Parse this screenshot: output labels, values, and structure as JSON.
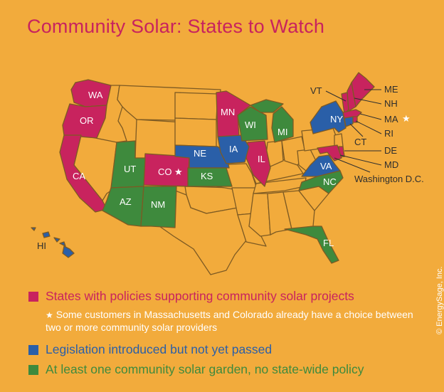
{
  "title": "Community Solar: States to Watch",
  "colors": {
    "background": "#f2ab3c",
    "policy": "#c8235e",
    "legislation": "#2a5fa8",
    "garden": "#3e8a3d",
    "other_state": "#f2ab3c",
    "border": "#7d5a23"
  },
  "state_labels": {
    "WA": "WA",
    "OR": "OR",
    "CA": "CA",
    "UT": "UT",
    "AZ": "AZ",
    "NM": "NM",
    "CO": "CO",
    "NE": "NE",
    "KS": "KS",
    "MN": "MN",
    "IA": "IA",
    "WI": "WI",
    "IL": "IL",
    "MI": "MI",
    "NY": "NY",
    "VA": "VA",
    "NC": "NC",
    "FL": "FL",
    "HI": "HI",
    "VT": "VT",
    "ME": "ME",
    "NH": "NH",
    "MA": "MA",
    "RI": "RI",
    "CT": "CT",
    "DE": "DE",
    "MD": "MD",
    "DC": "Washington D.C."
  },
  "star_glyph": "★",
  "legend": {
    "policy": "States with policies supporting community solar projects",
    "policy_note": "Some customers in Massachusetts and Colorado already have a choice between two or more community solar providers",
    "legislation": "Legislation introduced but not yet passed",
    "garden": "At least one community solar garden, no state-wide policy"
  },
  "credit": "© EnergySage, Inc."
}
